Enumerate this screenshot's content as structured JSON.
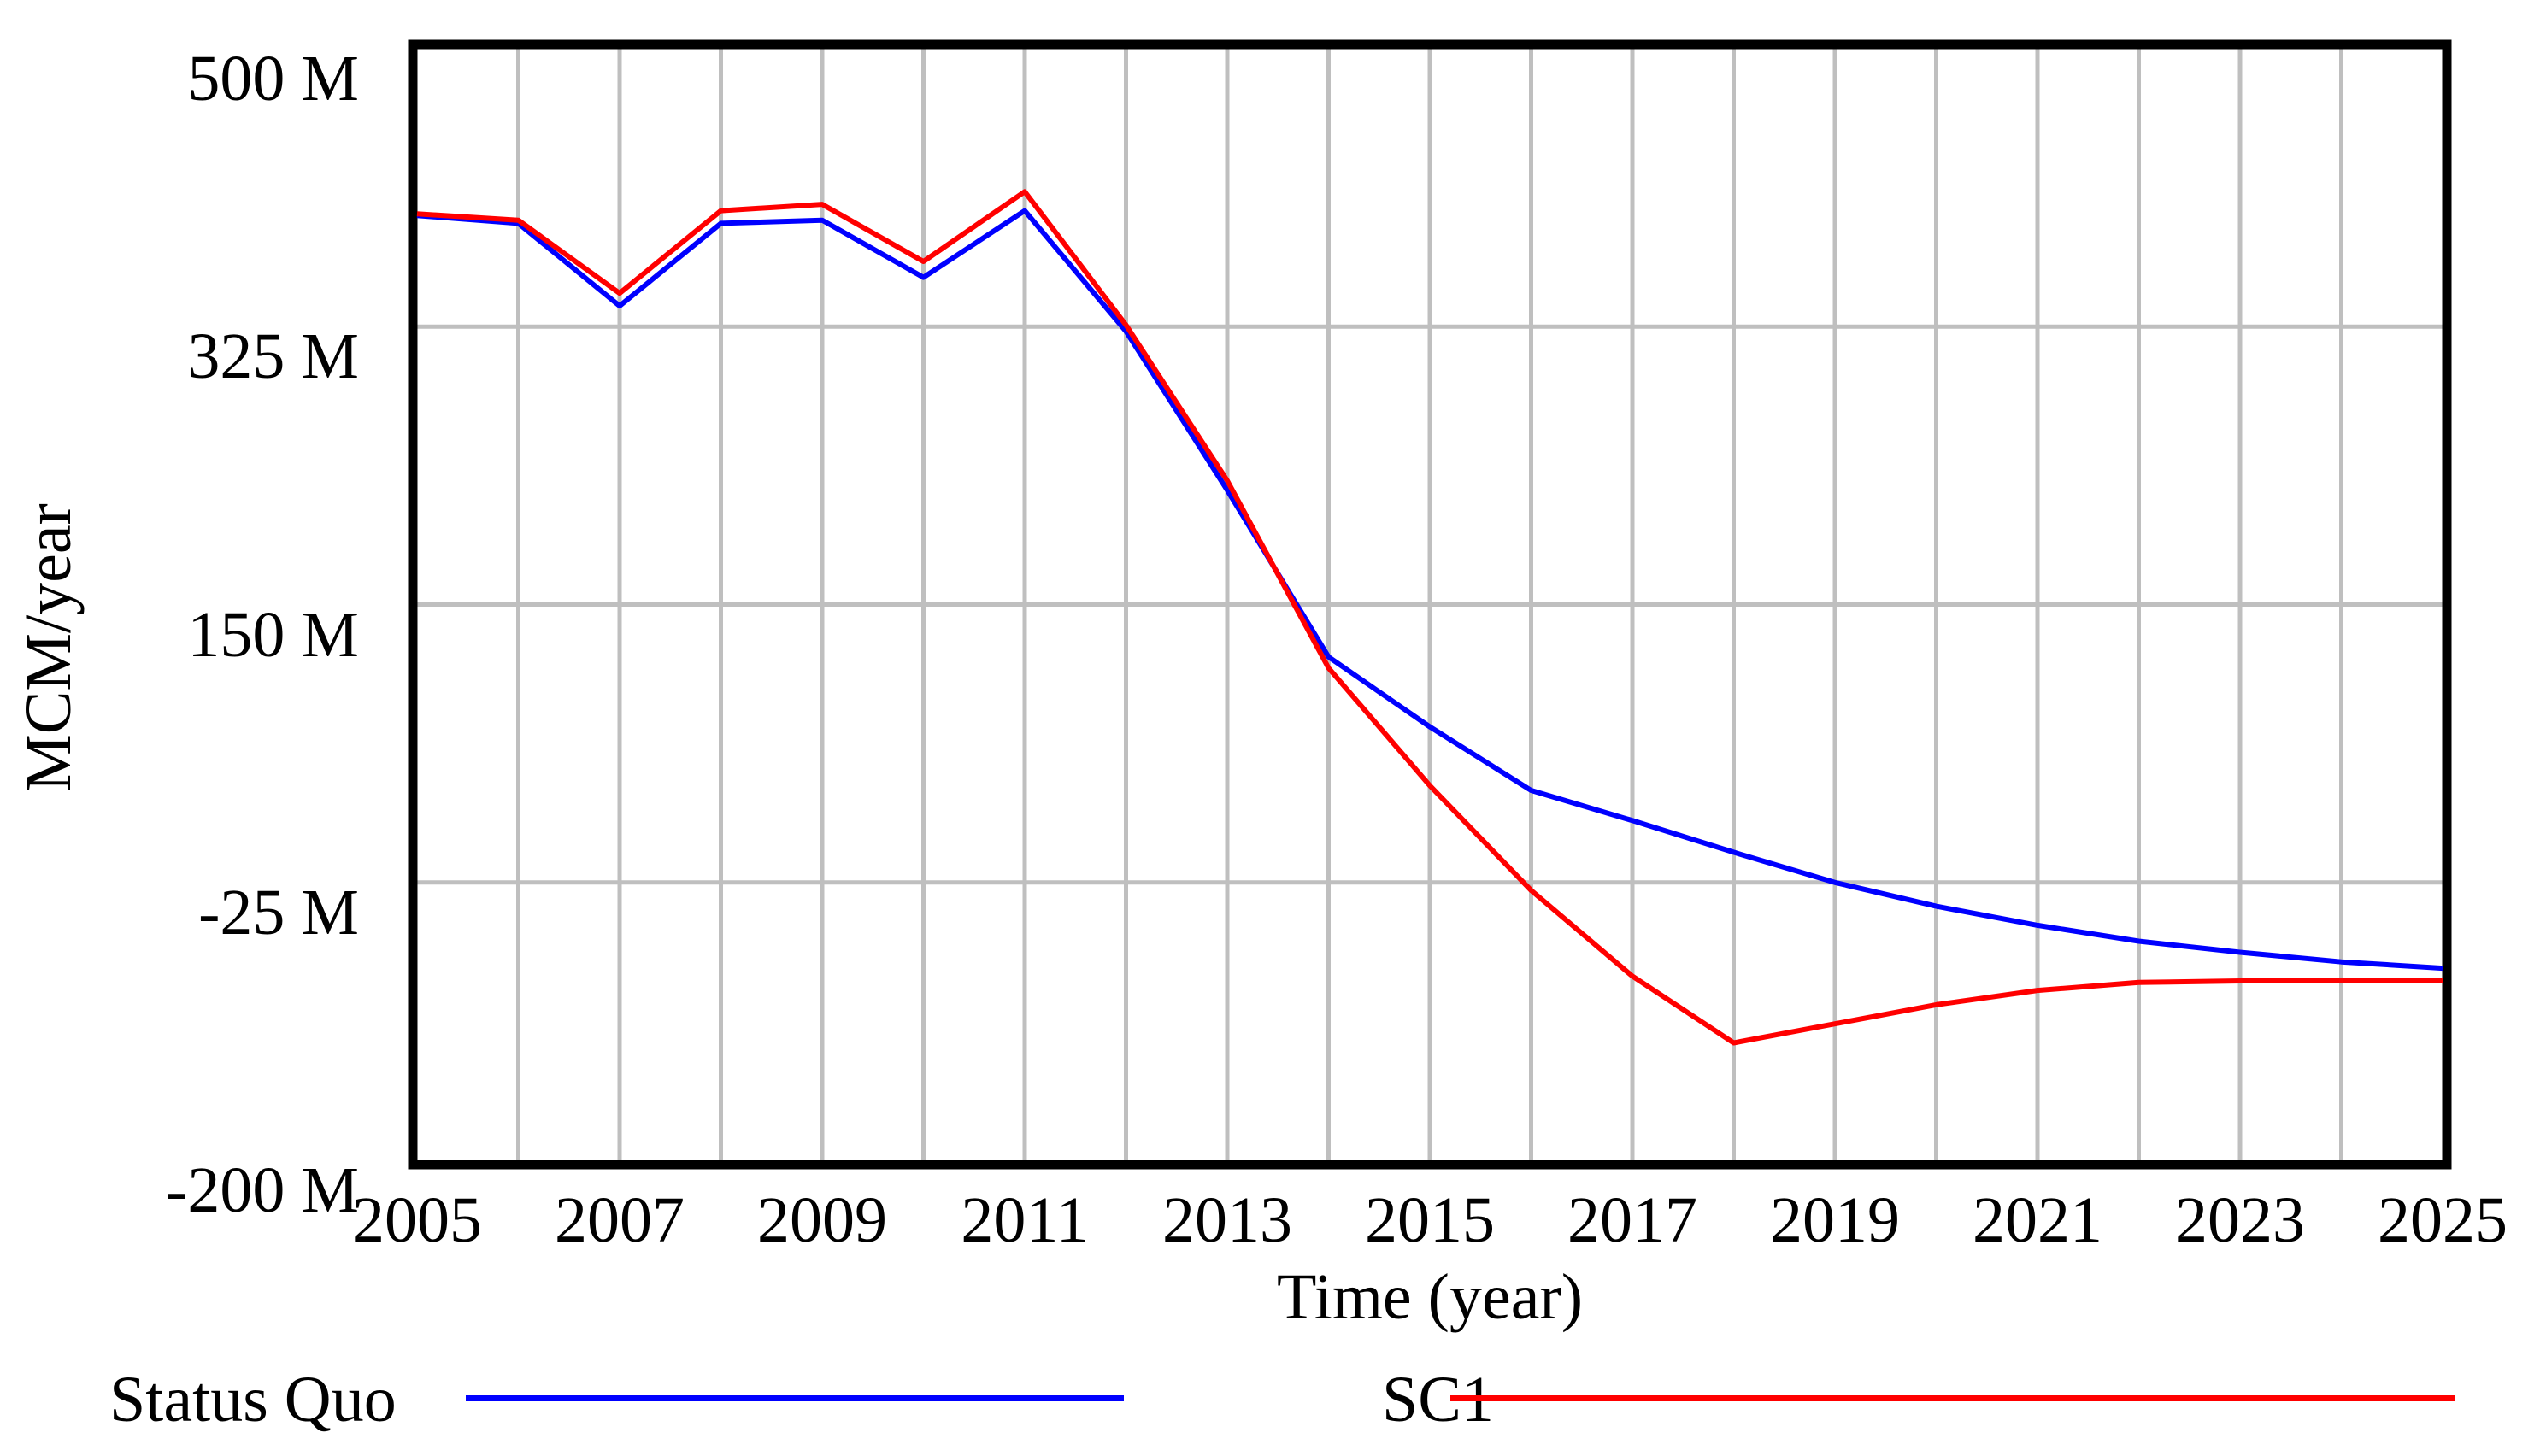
{
  "chart_data": {
    "type": "line",
    "title": "",
    "xlabel": "Time (year)",
    "ylabel": "MCM/year",
    "xlim": [
      2005,
      2025
    ],
    "ylim": [
      -200,
      500
    ],
    "grid": true,
    "legend_position": "bottom",
    "x": [
      2005,
      2006,
      2007,
      2008,
      2009,
      2010,
      2011,
      2012,
      2013,
      2014,
      2015,
      2016,
      2017,
      2018,
      2019,
      2020,
      2021,
      2022,
      2023,
      2024,
      2025
    ],
    "series": [
      {
        "name": "Status Quo",
        "color": "#0000ff",
        "values": [
          395,
          390,
          338,
          390,
          392,
          356,
          398,
          322,
          222,
          117,
          73,
          33,
          14,
          -6,
          -25,
          -40,
          -52,
          -62,
          -69,
          -75,
          -79
        ]
      },
      {
        "name": "SC1",
        "color": "#ff0000",
        "values": [
          396,
          392,
          346,
          398,
          402,
          366,
          410,
          326,
          228,
          110,
          36,
          -30,
          -84,
          -126,
          -114,
          -102,
          -93,
          -88,
          -87,
          -87,
          -87
        ]
      }
    ],
    "y_ticks": [
      {
        "value": 500,
        "label": "500 M"
      },
      {
        "value": 325,
        "label": "325 M"
      },
      {
        "value": 150,
        "label": "150 M"
      },
      {
        "value": -25,
        "label": "-25 M"
      },
      {
        "value": -200,
        "label": "-200 M"
      }
    ],
    "x_ticks": [
      {
        "value": 2005,
        "label": "2005"
      },
      {
        "value": 2007,
        "label": "2007"
      },
      {
        "value": 2009,
        "label": "2009"
      },
      {
        "value": 2011,
        "label": "2011"
      },
      {
        "value": 2013,
        "label": "2013"
      },
      {
        "value": 2015,
        "label": "2015"
      },
      {
        "value": 2017,
        "label": "2017"
      },
      {
        "value": 2019,
        "label": "2019"
      },
      {
        "value": 2021,
        "label": "2021"
      },
      {
        "value": 2023,
        "label": "2023"
      },
      {
        "value": 2025,
        "label": "2025"
      }
    ],
    "colors": {
      "gridline": "#bfbfbf",
      "frame": "#000000",
      "background": "#ffffff"
    }
  },
  "legend": {
    "items": [
      {
        "label": "Status Quo",
        "color": "#0000ff"
      },
      {
        "label": "SC1",
        "color": "#ff0000"
      }
    ]
  }
}
